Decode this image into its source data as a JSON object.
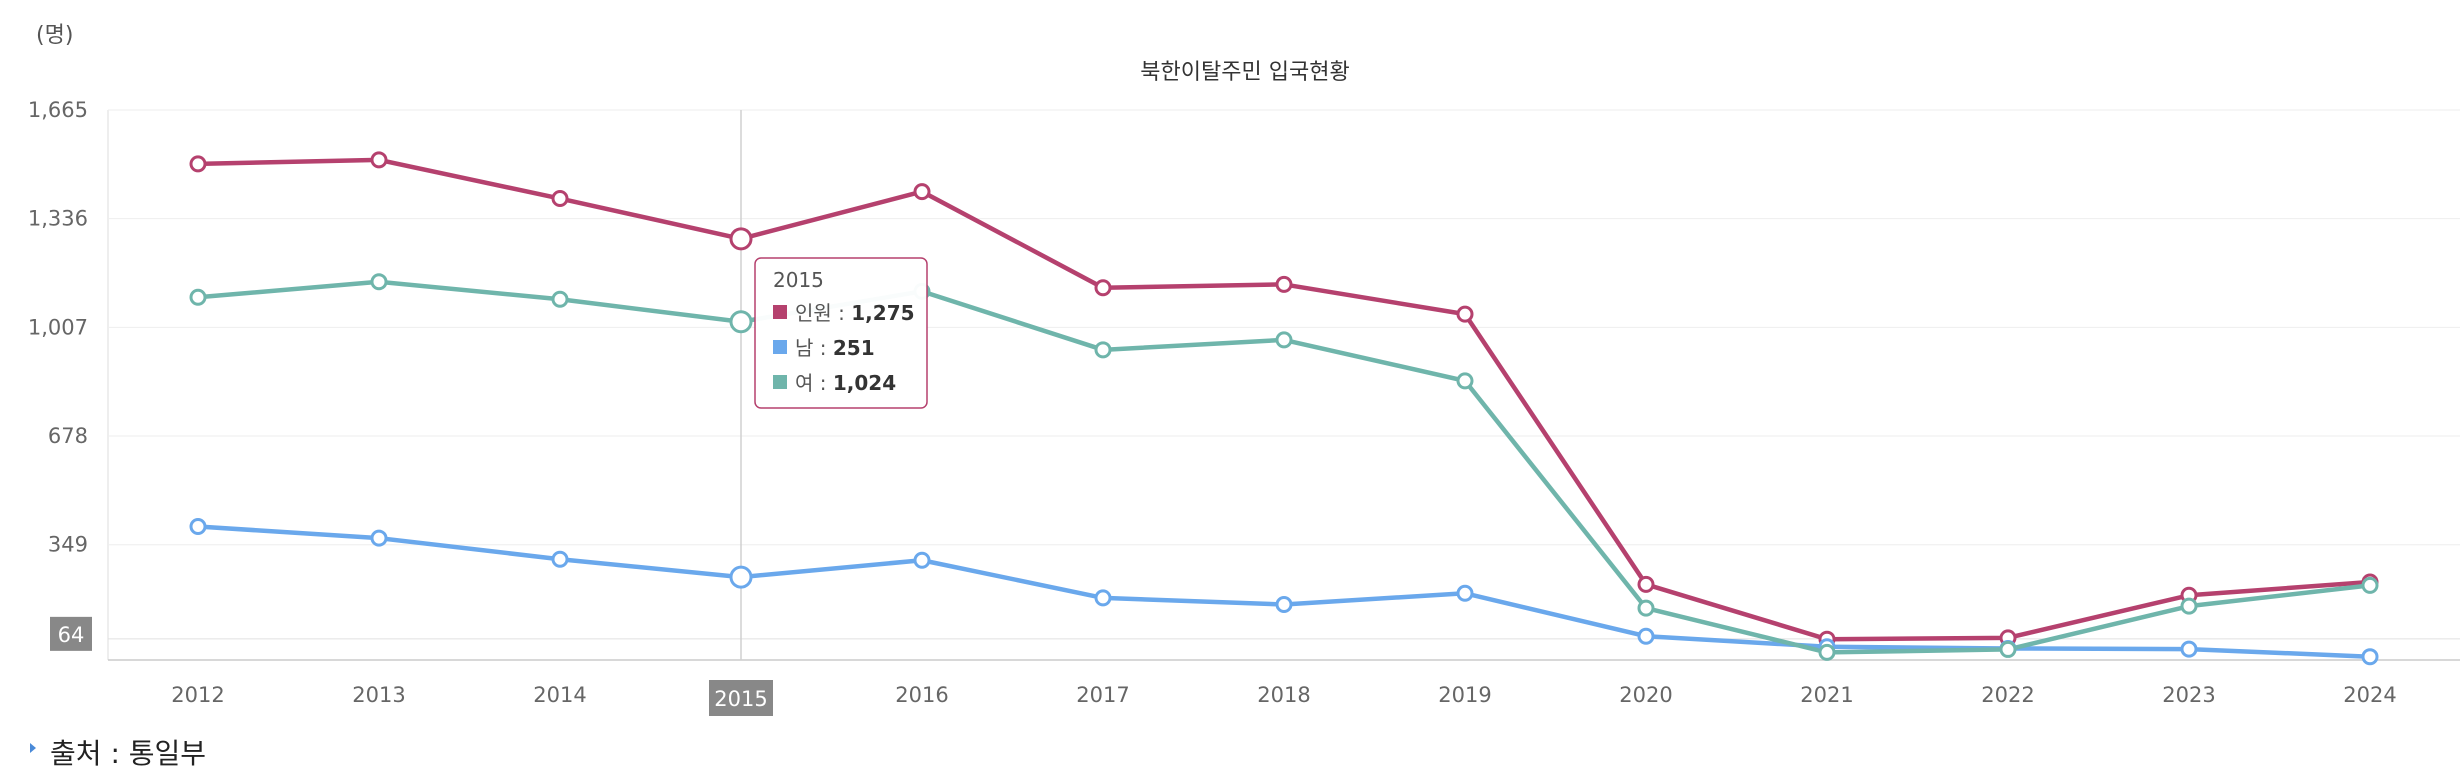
{
  "unit_label": "(명)",
  "chart_data": {
    "type": "line",
    "title": "북한이탈주민 입국현황",
    "xlabel": "",
    "ylabel": "(명)",
    "categories": [
      "2012",
      "2013",
      "2014",
      "2015",
      "2016",
      "2017",
      "2018",
      "2019",
      "2020",
      "2021",
      "2022",
      "2023",
      "2024"
    ],
    "yticks": [
      "64",
      "349",
      "678",
      "1,007",
      "1,336",
      "1,665"
    ],
    "ylim": [
      0,
      1665
    ],
    "grid": true,
    "series": [
      {
        "name": "인원",
        "color": "#b5416e",
        "values": [
          1502,
          1514,
          1397,
          1275,
          1418,
          1127,
          1137,
          1047,
          229,
          63,
          67,
          196,
          236
        ]
      },
      {
        "name": "남",
        "color": "#6aa8ec",
        "values": [
          404,
          369,
          305,
          251,
          302,
          188,
          168,
          202,
          72,
          40,
          35,
          33,
          10
        ]
      },
      {
        "name": "여",
        "color": "#6fb5ab",
        "values": [
          1098,
          1145,
          1092,
          1024,
          1116,
          939,
          969,
          845,
          157,
          23,
          32,
          163,
          226
        ]
      }
    ],
    "highlight": {
      "category": "2015",
      "tooltip": {
        "header": "2015",
        "rows": [
          {
            "label": "인원",
            "value": "1,275"
          },
          {
            "label": "남",
            "value": "251"
          },
          {
            "label": "여",
            "value": "1,024"
          }
        ]
      }
    }
  },
  "source": {
    "label": "출처",
    "separator": ":",
    "value": "통일부"
  }
}
